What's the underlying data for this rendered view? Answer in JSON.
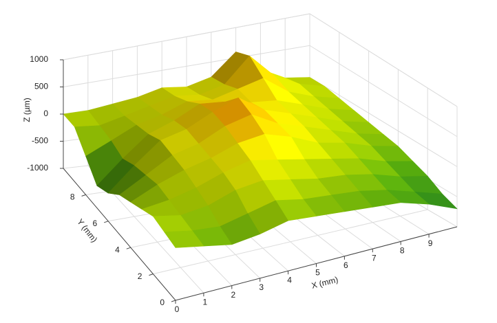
{
  "chart_data": {
    "type": "surface",
    "x_label": "X (mm)",
    "y_label": "Y (mm)",
    "z_label": "Z (µm)",
    "x": [
      0,
      1,
      2,
      3,
      4,
      5,
      6,
      7,
      8,
      9,
      10
    ],
    "y": [
      0,
      1,
      2,
      3,
      4,
      5,
      6,
      7,
      8,
      9,
      10
    ],
    "z": [
      [
        -100,
        -200,
        -300,
        -250,
        -150,
        -200,
        -250,
        -300,
        -350,
        -500,
        -700
      ],
      [
        -50,
        -150,
        -200,
        -100,
        0,
        -100,
        -150,
        -200,
        -300,
        -450,
        -600
      ],
      [
        0,
        -100,
        -50,
        100,
        150,
        50,
        -50,
        -100,
        -200,
        -350,
        -450
      ],
      [
        -100,
        -50,
        50,
        200,
        300,
        200,
        100,
        0,
        -100,
        -250,
        -350
      ],
      [
        -200,
        0,
        150,
        250,
        400,
        450,
        300,
        100,
        0,
        -150,
        -250
      ],
      [
        -300,
        -50,
        200,
        300,
        500,
        600,
        350,
        200,
        50,
        -100,
        -200
      ],
      [
        -500,
        -100,
        250,
        350,
        550,
        700,
        400,
        250,
        100,
        -50,
        -150
      ],
      [
        -600,
        -200,
        150,
        300,
        500,
        450,
        350,
        300,
        150,
        0,
        -100
      ],
      [
        -300,
        -100,
        100,
        200,
        350,
        300,
        400,
        500,
        200,
        50,
        -50
      ],
      [
        0,
        -50,
        50,
        150,
        250,
        200,
        300,
        700,
        300,
        100,
        0
      ],
      [
        0,
        0,
        50,
        100,
        200,
        150,
        250,
        600,
        250,
        50,
        0
      ]
    ],
    "xlim": [
      0,
      10
    ],
    "ylim": [
      0,
      10
    ],
    "zlim": [
      -1000,
      1000
    ],
    "xticks": [
      0,
      1,
      2,
      3,
      4,
      5,
      6,
      7,
      8,
      9
    ],
    "yticks": [
      0,
      2,
      4,
      6,
      8
    ],
    "zticks": [
      -1000,
      -500,
      0,
      500,
      1000
    ],
    "grid": true,
    "colorscale": [
      "#0b3f66",
      "#1f6f1a",
      "#4f9a0c",
      "#a9c400",
      "#e3d800",
      "#e58a00",
      "#d0300c"
    ]
  }
}
